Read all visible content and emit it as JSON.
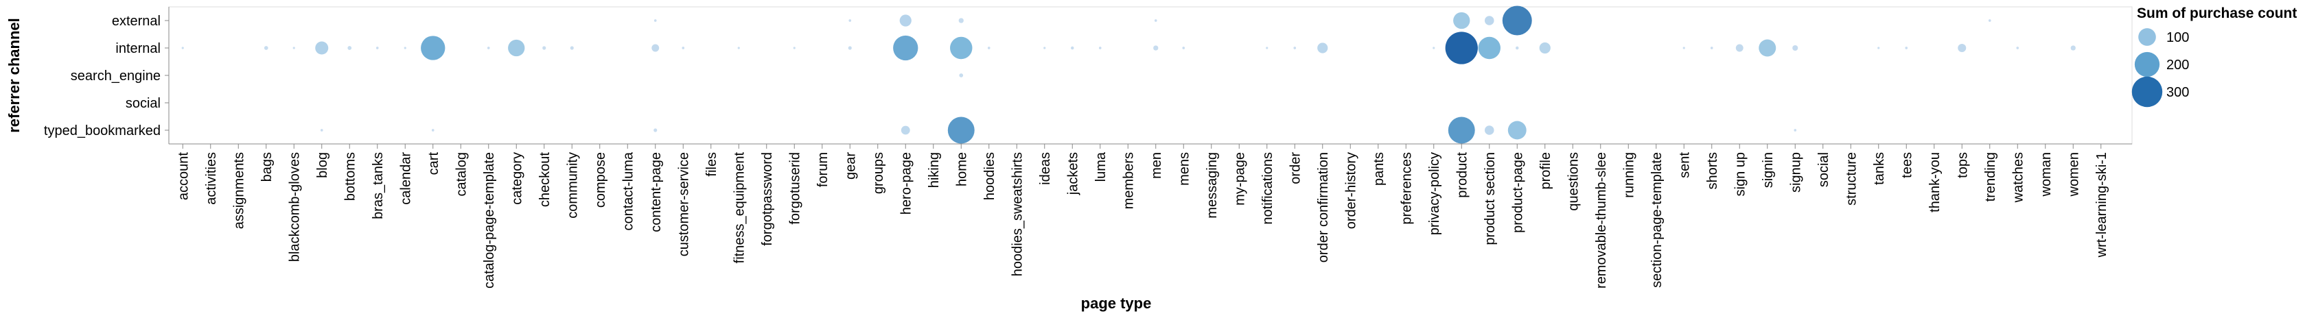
{
  "chart_data": {
    "type": "scatter",
    "title": "",
    "xlabel": "page type",
    "ylabel": "referrer channel",
    "grid": false,
    "legend_position": "top-right",
    "categories": [
      "account",
      "activities",
      "assignments",
      "bags",
      "blackcomb-gloves",
      "blog",
      "bottoms",
      "bras_tanks",
      "calendar",
      "cart",
      "catalog",
      "catalog-page-template",
      "category",
      "checkout",
      "community",
      "compose",
      "contact-luma",
      "content-page",
      "customer-service",
      "files",
      "fitness_equipment",
      "forgotpassword",
      "forgotuserid",
      "forum",
      "gear",
      "groups",
      "hero-page",
      "hiking",
      "home",
      "hoodies",
      "hoodies_sweatshirts",
      "ideas",
      "jackets",
      "luma",
      "members",
      "men",
      "mens",
      "messaging",
      "my-page",
      "notifications",
      "order",
      "order confirmation",
      "order-history",
      "pants",
      "preferences",
      "privacy-policy",
      "product",
      "product section",
      "product-page",
      "profile",
      "questions",
      "removable-thumb-slee",
      "running",
      "section-page-template",
      "sent",
      "shorts",
      "sign up",
      "signin",
      "signup",
      "social",
      "structure",
      "tanks",
      "tees",
      "thank-you",
      "tops",
      "trending",
      "watches",
      "woman",
      "women",
      "wrt-learning-ski-1"
    ],
    "channels": [
      "external",
      "internal",
      "search_engine",
      "social",
      "typed_bookmarked"
    ],
    "size_legend": {
      "title": "Sum of purchase count",
      "values": [
        100,
        200,
        300
      ]
    },
    "size_domain_max": 350,
    "colors": {
      "low": "#c6dbef",
      "mid": "#6baed6",
      "high": "#08519c",
      "axis": "#888888",
      "frame": "#dddddd"
    },
    "points": [
      {
        "x": "gear",
        "channel": "external",
        "value": 2
      },
      {
        "x": "hero-page",
        "channel": "external",
        "value": 45
      },
      {
        "x": "home",
        "channel": "external",
        "value": 8
      },
      {
        "x": "content-page",
        "channel": "external",
        "value": 2
      },
      {
        "x": "men",
        "channel": "external",
        "value": 2
      },
      {
        "x": "product",
        "channel": "external",
        "value": 90
      },
      {
        "x": "product section",
        "channel": "external",
        "value": 28
      },
      {
        "x": "product-page",
        "channel": "external",
        "value": 280
      },
      {
        "x": "trending",
        "channel": "external",
        "value": 2
      },
      {
        "x": "account",
        "channel": "internal",
        "value": 1
      },
      {
        "x": "bags",
        "channel": "internal",
        "value": 5
      },
      {
        "x": "blackcomb-gloves",
        "channel": "internal",
        "value": 1
      },
      {
        "x": "blog",
        "channel": "internal",
        "value": 55
      },
      {
        "x": "bottoms",
        "channel": "internal",
        "value": 5
      },
      {
        "x": "bras_tanks",
        "channel": "internal",
        "value": 2
      },
      {
        "x": "calendar",
        "channel": "internal",
        "value": 1
      },
      {
        "x": "cart",
        "channel": "internal",
        "value": 190
      },
      {
        "x": "catalog-page-template",
        "channel": "internal",
        "value": 2
      },
      {
        "x": "category",
        "channel": "internal",
        "value": 90
      },
      {
        "x": "checkout",
        "channel": "internal",
        "value": 4
      },
      {
        "x": "community",
        "channel": "internal",
        "value": 4
      },
      {
        "x": "content-page",
        "channel": "internal",
        "value": 18
      },
      {
        "x": "customer-service",
        "channel": "internal",
        "value": 2
      },
      {
        "x": "fitness_equipment",
        "channel": "internal",
        "value": 1
      },
      {
        "x": "forgotuserid",
        "channel": "internal",
        "value": 1
      },
      {
        "x": "gear",
        "channel": "internal",
        "value": 4
      },
      {
        "x": "hero-page",
        "channel": "internal",
        "value": 200
      },
      {
        "x": "home",
        "channel": "internal",
        "value": 160
      },
      {
        "x": "hoodies",
        "channel": "internal",
        "value": 2
      },
      {
        "x": "ideas",
        "channel": "internal",
        "value": 1
      },
      {
        "x": "jackets",
        "channel": "internal",
        "value": 3
      },
      {
        "x": "luma",
        "channel": "internal",
        "value": 2
      },
      {
        "x": "men",
        "channel": "internal",
        "value": 8
      },
      {
        "x": "mens",
        "channel": "internal",
        "value": 2
      },
      {
        "x": "notifications",
        "channel": "internal",
        "value": 1
      },
      {
        "x": "order",
        "channel": "internal",
        "value": 2
      },
      {
        "x": "order confirmation",
        "channel": "internal",
        "value": 35
      },
      {
        "x": "privacy-policy",
        "channel": "internal",
        "value": 1
      },
      {
        "x": "product",
        "channel": "internal",
        "value": 340
      },
      {
        "x": "product section",
        "channel": "internal",
        "value": 160
      },
      {
        "x": "product-page",
        "channel": "internal",
        "value": 3
      },
      {
        "x": "profile",
        "channel": "internal",
        "value": 40
      },
      {
        "x": "sent",
        "channel": "internal",
        "value": 1
      },
      {
        "x": "shorts",
        "channel": "internal",
        "value": 2
      },
      {
        "x": "sign up",
        "channel": "internal",
        "value": 18
      },
      {
        "x": "signin",
        "channel": "internal",
        "value": 95
      },
      {
        "x": "signup",
        "channel": "internal",
        "value": 10
      },
      {
        "x": "tanks",
        "channel": "internal",
        "value": 1
      },
      {
        "x": "tees",
        "channel": "internal",
        "value": 2
      },
      {
        "x": "tops",
        "channel": "internal",
        "value": 22
      },
      {
        "x": "watches",
        "channel": "internal",
        "value": 2
      },
      {
        "x": "women",
        "channel": "internal",
        "value": 8
      },
      {
        "x": "home",
        "channel": "search_engine",
        "value": 5
      },
      {
        "x": "blog",
        "channel": "typed_bookmarked",
        "value": 2
      },
      {
        "x": "cart",
        "channel": "typed_bookmarked",
        "value": 2
      },
      {
        "x": "content-page",
        "channel": "typed_bookmarked",
        "value": 4
      },
      {
        "x": "hero-page",
        "channel": "typed_bookmarked",
        "value": 25
      },
      {
        "x": "home",
        "channel": "typed_bookmarked",
        "value": 230
      },
      {
        "x": "product",
        "channel": "typed_bookmarked",
        "value": 230
      },
      {
        "x": "product section",
        "channel": "typed_bookmarked",
        "value": 28
      },
      {
        "x": "product-page",
        "channel": "typed_bookmarked",
        "value": 110
      },
      {
        "x": "signup",
        "channel": "typed_bookmarked",
        "value": 2
      }
    ]
  }
}
